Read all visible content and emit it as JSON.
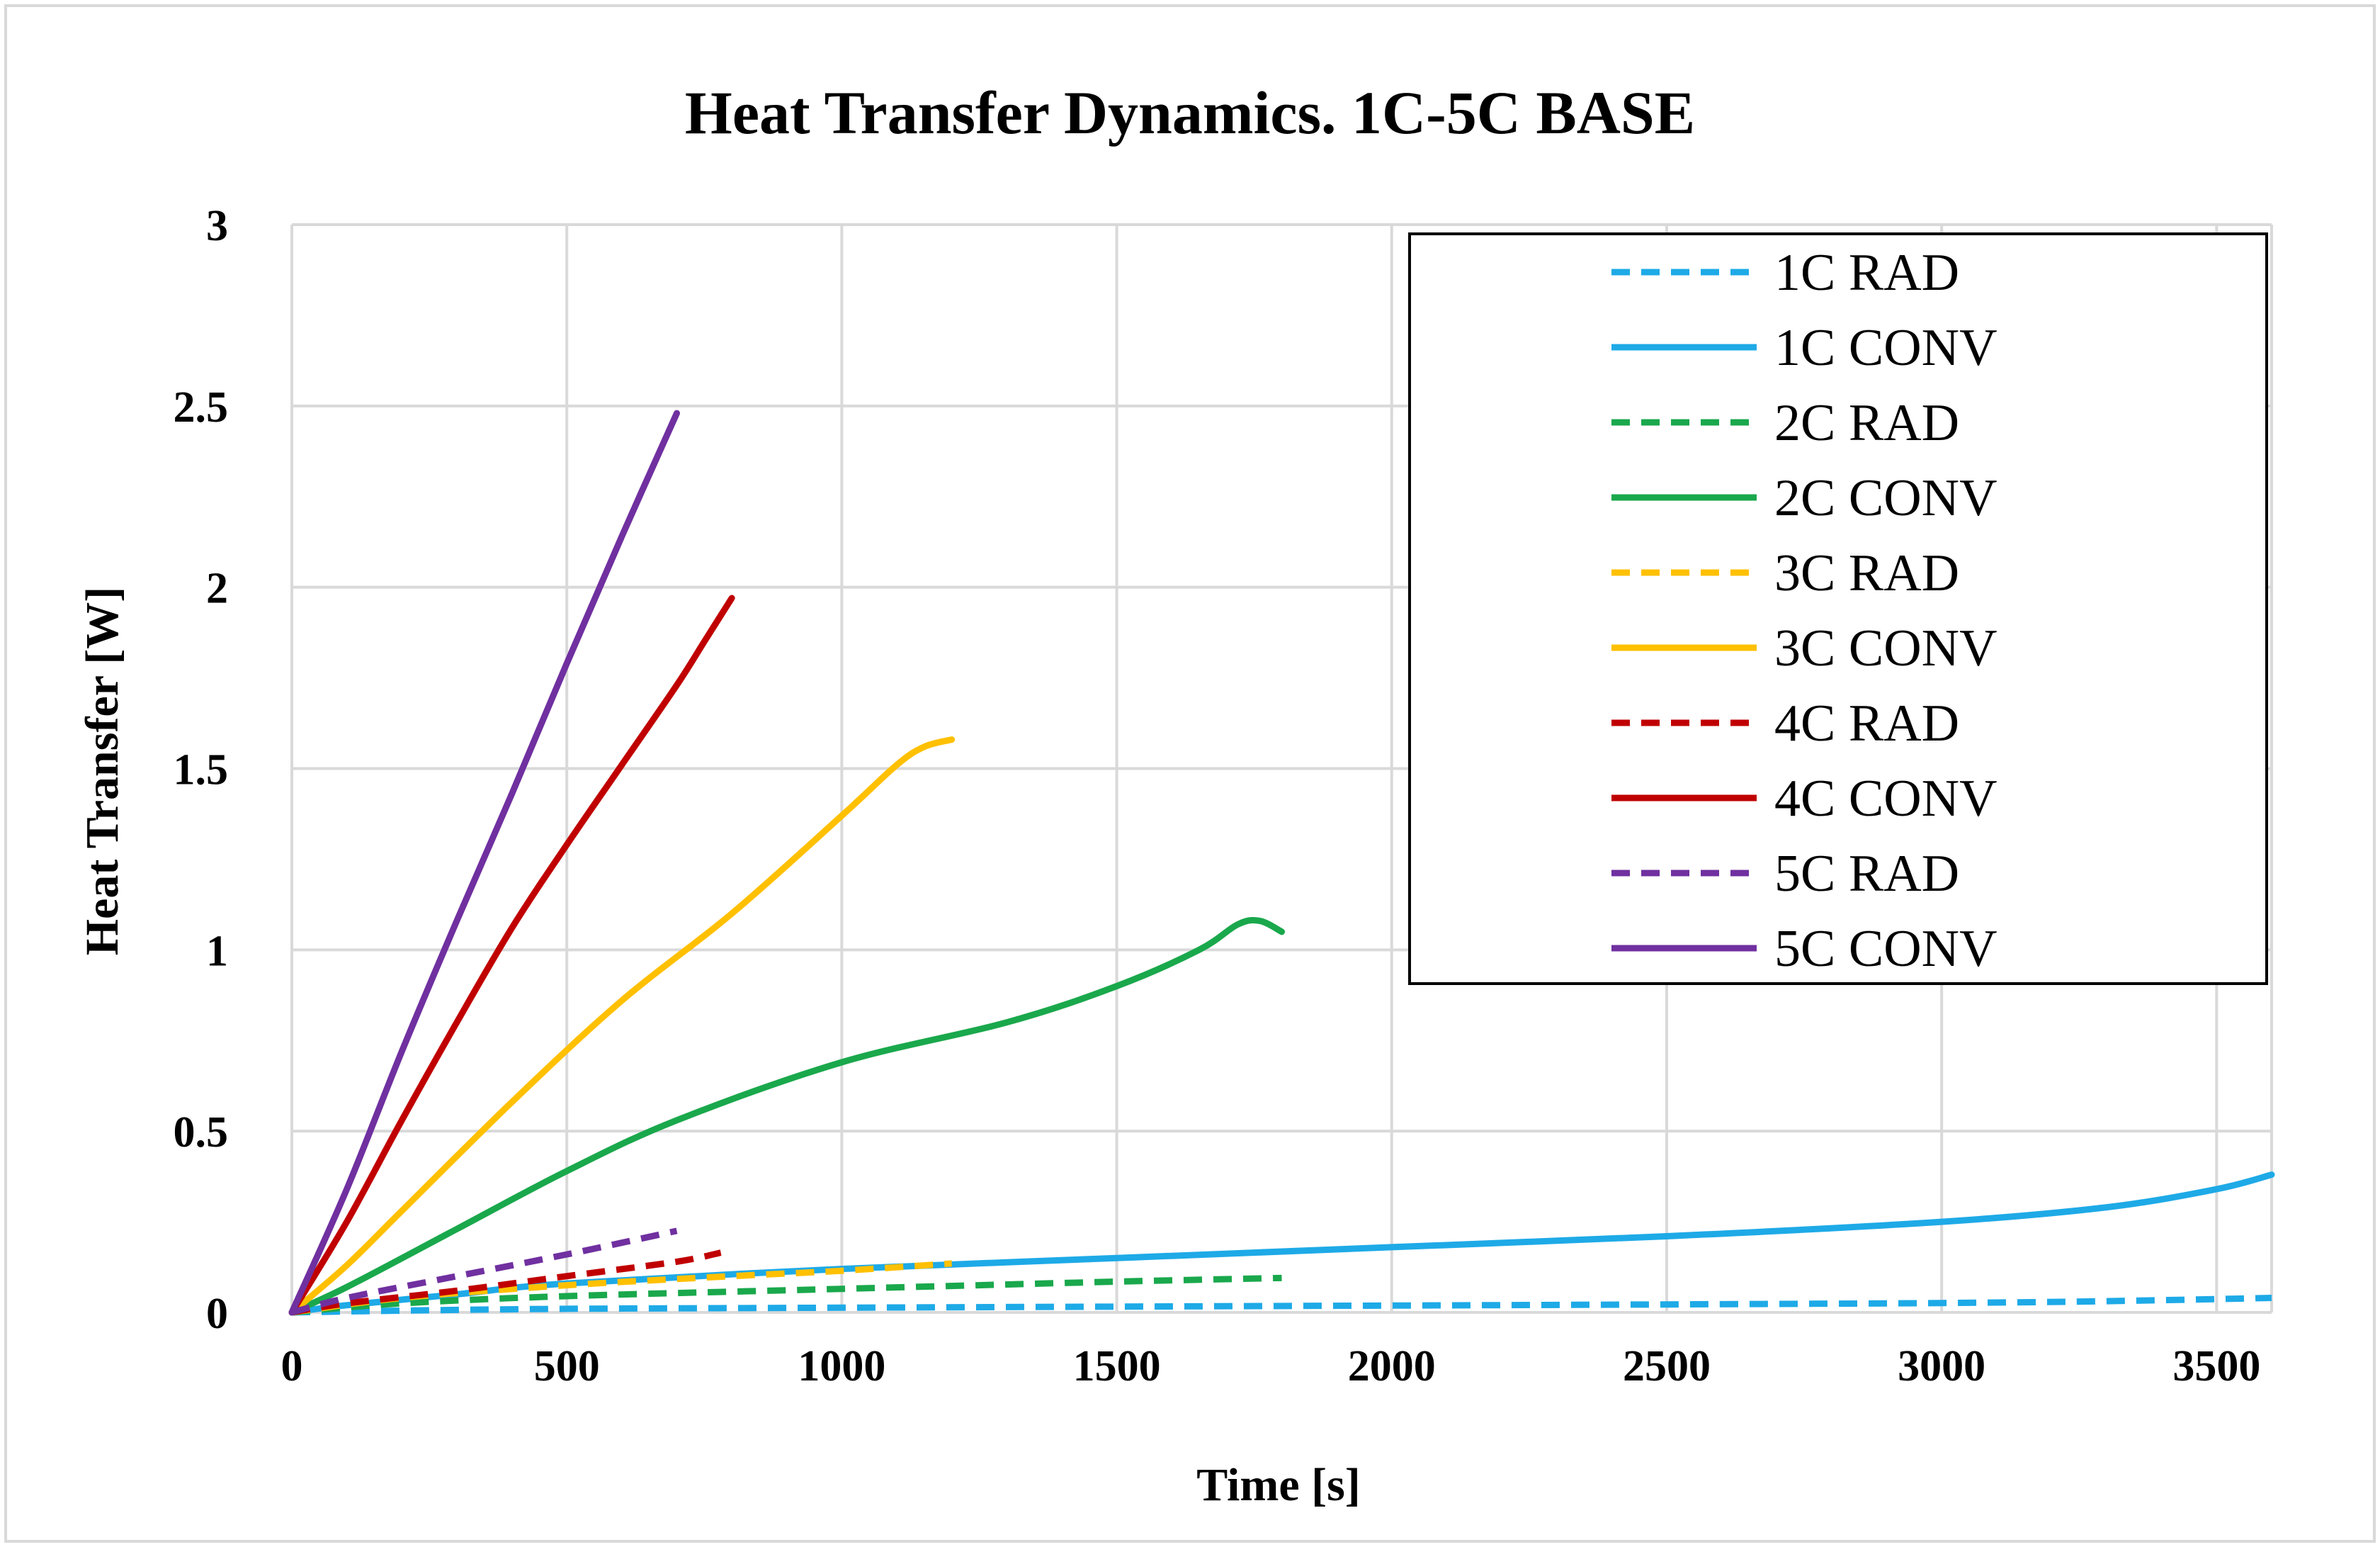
{
  "chart_data": {
    "type": "line",
    "title": "Heat Transfer Dynamics. 1C-5C BASE",
    "xlabel": "Time [s]",
    "ylabel": "Heat Transfer [W]",
    "xlim": [
      0,
      3600
    ],
    "ylim": [
      0,
      3
    ],
    "xticks": [
      0,
      500,
      1000,
      1500,
      2000,
      2500,
      3000,
      3500
    ],
    "yticks": [
      0,
      0.5,
      1,
      1.5,
      2,
      2.5,
      3
    ],
    "xtick_labels": [
      "0",
      "500",
      "1000",
      "1500",
      "2000",
      "2500",
      "3000",
      "3500"
    ],
    "ytick_labels": [
      "0",
      "0.5",
      "1",
      "1.5",
      "2",
      "2.5",
      "3"
    ],
    "grid": true,
    "legend_position": "top-right",
    "series": [
      {
        "name": "1C RAD",
        "color": "#1eaae7",
        "dash": true,
        "x": [
          0,
          200,
          500,
          1000,
          1500,
          2000,
          2500,
          3000,
          3300,
          3600
        ],
        "y": [
          0,
          0.005,
          0.01,
          0.013,
          0.016,
          0.019,
          0.022,
          0.026,
          0.031,
          0.04
        ]
      },
      {
        "name": "1C CONV",
        "color": "#1eaae7",
        "dash": false,
        "x": [
          0,
          100,
          300,
          500,
          1000,
          1500,
          2000,
          2500,
          3000,
          3300,
          3500,
          3600
        ],
        "y": [
          0,
          0.02,
          0.05,
          0.08,
          0.12,
          0.15,
          0.18,
          0.21,
          0.25,
          0.29,
          0.34,
          0.38
        ]
      },
      {
        "name": "2C RAD",
        "color": "#1aa84c",
        "dash": true,
        "x": [
          0,
          200,
          500,
          1000,
          1500,
          1800
        ],
        "y": [
          0,
          0.025,
          0.045,
          0.065,
          0.085,
          0.095
        ]
      },
      {
        "name": "2C CONV",
        "color": "#1aa84c",
        "dash": false,
        "x": [
          0,
          100,
          300,
          500,
          700,
          1000,
          1300,
          1500,
          1650,
          1720,
          1760,
          1800
        ],
        "y": [
          0,
          0.07,
          0.23,
          0.39,
          0.53,
          0.69,
          0.8,
          0.9,
          1.0,
          1.07,
          1.08,
          1.05
        ]
      },
      {
        "name": "3C RAD",
        "color": "#ffc000",
        "dash": true,
        "x": [
          0,
          200,
          500,
          800,
          1000,
          1200
        ],
        "y": [
          0,
          0.04,
          0.075,
          0.1,
          0.115,
          0.135
        ]
      },
      {
        "name": "3C CONV",
        "color": "#ffc000",
        "dash": false,
        "x": [
          0,
          100,
          200,
          400,
          600,
          800,
          1000,
          1100,
          1150,
          1200
        ],
        "y": [
          0,
          0.13,
          0.28,
          0.58,
          0.86,
          1.1,
          1.37,
          1.51,
          1.56,
          1.58
        ]
      },
      {
        "name": "4C RAD",
        "color": "#c00000",
        "dash": true,
        "x": [
          0,
          100,
          300,
          500,
          700,
          780
        ],
        "y": [
          0,
          0.025,
          0.06,
          0.1,
          0.14,
          0.165
        ]
      },
      {
        "name": "4C CONV",
        "color": "#c00000",
        "dash": false,
        "x": [
          0,
          100,
          200,
          300,
          400,
          500,
          600,
          700,
          750,
          800
        ],
        "y": [
          0,
          0.25,
          0.53,
          0.8,
          1.06,
          1.29,
          1.51,
          1.73,
          1.85,
          1.97
        ]
      },
      {
        "name": "5C RAD",
        "color": "#7030a0",
        "dash": true,
        "x": [
          0,
          100,
          300,
          500,
          700
        ],
        "y": [
          0,
          0.04,
          0.1,
          0.16,
          0.225
        ]
      },
      {
        "name": "5C CONV",
        "color": "#7030a0",
        "dash": false,
        "x": [
          0,
          100,
          200,
          300,
          400,
          500,
          600,
          700
        ],
        "y": [
          0,
          0.34,
          0.72,
          1.08,
          1.43,
          1.79,
          2.14,
          2.48
        ]
      }
    ]
  }
}
